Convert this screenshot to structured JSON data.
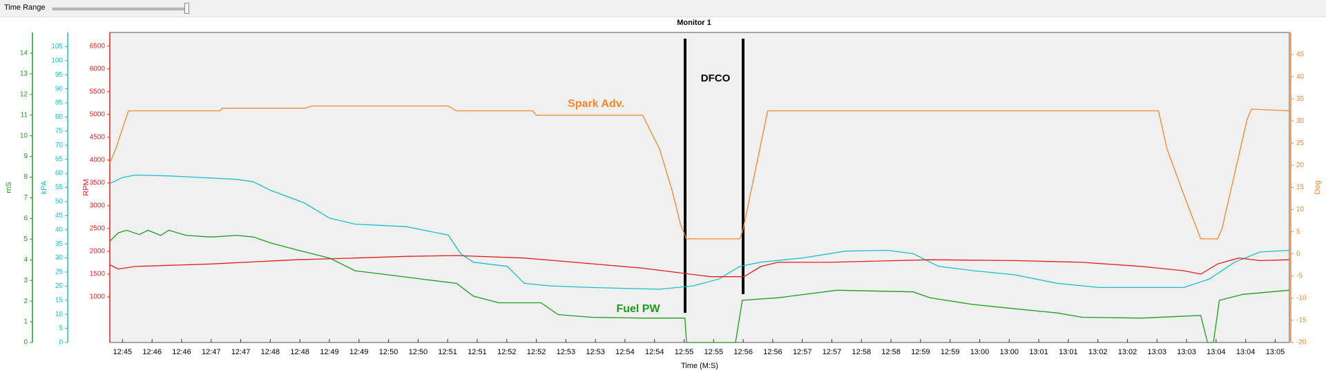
{
  "toolbar": {
    "label": "Time Range"
  },
  "chart_data": {
    "type": "line",
    "title": "Monitor 1",
    "x_label": "Time (M:S)",
    "xlim": [
      -0.43,
      39.48
    ],
    "xticks": [
      {
        "value": 0,
        "label": "12:45"
      },
      {
        "value": 1,
        "label": "12:46"
      },
      {
        "value": 2,
        "label": "12:46"
      },
      {
        "value": 3,
        "label": "12:47"
      },
      {
        "value": 4,
        "label": "12:47"
      },
      {
        "value": 5,
        "label": "12:48"
      },
      {
        "value": 6,
        "label": "12:48"
      },
      {
        "value": 7,
        "label": "12:49"
      },
      {
        "value": 8,
        "label": "12:49"
      },
      {
        "value": 9,
        "label": "12:50"
      },
      {
        "value": 10,
        "label": "12:50"
      },
      {
        "value": 11,
        "label": "12:51"
      },
      {
        "value": 12,
        "label": "12:51"
      },
      {
        "value": 13,
        "label": "12:52"
      },
      {
        "value": 14,
        "label": "12:52"
      },
      {
        "value": 15,
        "label": "12:53"
      },
      {
        "value": 16,
        "label": "12:53"
      },
      {
        "value": 17,
        "label": "12:54"
      },
      {
        "value": 18,
        "label": "12:54"
      },
      {
        "value": 19,
        "label": "12:55"
      },
      {
        "value": 20,
        "label": "12:55"
      },
      {
        "value": 21,
        "label": "12:56"
      },
      {
        "value": 22,
        "label": "12:56"
      },
      {
        "value": 23,
        "label": "12:57"
      },
      {
        "value": 24,
        "label": "12:57"
      },
      {
        "value": 25,
        "label": "12:58"
      },
      {
        "value": 26,
        "label": "12:58"
      },
      {
        "value": 27,
        "label": "12:59"
      },
      {
        "value": 28,
        "label": "12:59"
      },
      {
        "value": 29,
        "label": "13:00"
      },
      {
        "value": 30,
        "label": "13:00"
      },
      {
        "value": 31,
        "label": "13:01"
      },
      {
        "value": 32,
        "label": "13:01"
      },
      {
        "value": 33,
        "label": "13:02"
      },
      {
        "value": 34,
        "label": "13:02"
      },
      {
        "value": 35,
        "label": "13:03"
      },
      {
        "value": 36,
        "label": "13:03"
      },
      {
        "value": 37,
        "label": "13:04"
      },
      {
        "value": 38,
        "label": "13:04"
      },
      {
        "value": 39,
        "label": "13:05"
      }
    ],
    "y_axes": [
      {
        "label": "mS",
        "color": "#1e9a1e",
        "side": "left",
        "lim": [
          0,
          15
        ],
        "ticks": [
          0,
          1,
          2,
          3,
          4,
          5,
          6,
          7,
          8,
          9,
          10,
          11,
          12,
          13,
          14
        ]
      },
      {
        "label": "kPA",
        "color": "#17bfcc",
        "side": "left",
        "lim": [
          0,
          110
        ],
        "ticks": [
          0,
          5,
          10,
          15,
          20,
          25,
          30,
          35,
          40,
          45,
          50,
          55,
          60,
          65,
          70,
          75,
          80,
          85,
          90,
          95,
          100,
          105
        ]
      },
      {
        "label": "RPM",
        "color": "#e31a1c",
        "side": "left",
        "lim": [
          0,
          6800
        ],
        "ticks": [
          1000,
          1500,
          2000,
          2500,
          3000,
          3500,
          4000,
          4500,
          5000,
          5500,
          6000,
          6500
        ]
      },
      {
        "label": "Deg",
        "color": "#f4862a",
        "side": "right",
        "lim": [
          -20,
          50
        ],
        "ticks": [
          -20,
          -15,
          -10,
          -5,
          0,
          5,
          10,
          15,
          20,
          25,
          30,
          35,
          40,
          45
        ]
      }
    ],
    "series": [
      {
        "name": "Spark Adv.",
        "color": "#f4862a",
        "axis": 3,
        "x": [
          -0.43,
          -0.23,
          -0.06,
          0.2,
          3.29,
          3.4,
          6.15,
          6.44,
          11.02,
          11.3,
          13.88,
          14.0,
          17.6,
          17.74,
          18.17,
          18.6,
          18.88,
          19.08,
          20.89,
          21.0,
          21.83,
          35.05,
          35.34,
          35.91,
          36.48,
          37.05,
          37.2,
          38.05,
          38.2,
          39.48
        ],
        "values": [
          20.5,
          23.7,
          27.1,
          32.3,
          32.3,
          32.9,
          32.9,
          33.4,
          33.4,
          32.3,
          32.3,
          31.3,
          31.3,
          29.4,
          23.7,
          14.2,
          6.6,
          3.4,
          3.4,
          5.7,
          32.3,
          32.3,
          23.7,
          13.3,
          3.4,
          3.4,
          5.7,
          30.4,
          32.7,
          32.3
        ]
      },
      {
        "name": "kPA",
        "color": "#17bfcc",
        "axis": 1,
        "x": [
          -0.43,
          0,
          0.43,
          1.57,
          3.86,
          4.43,
          5.01,
          6.15,
          7.01,
          7.87,
          9.59,
          11.02,
          11.44,
          11.87,
          13.02,
          13.59,
          14.45,
          15.88,
          18.17,
          19.31,
          20.17,
          20.89,
          21.6,
          23.03,
          24.46,
          25.89,
          26.75,
          27.61,
          28.76,
          30.19,
          31.62,
          33.05,
          35.91,
          36.77,
          37.63,
          38.48,
          39.48
        ],
        "values": [
          56.4,
          58.5,
          59.4,
          59.1,
          57.9,
          57,
          54,
          49.5,
          44.1,
          42,
          41.1,
          38.1,
          31.5,
          28.5,
          27,
          21,
          20.1,
          19.5,
          18.9,
          20.1,
          22.5,
          27,
          28.5,
          30,
          32.4,
          32.7,
          31.5,
          27,
          25.5,
          24,
          21,
          19.5,
          19.5,
          22.5,
          28.5,
          32.1,
          32.7
        ]
      },
      {
        "name": "RPM",
        "color": "#e31a1c",
        "axis": 2,
        "x": [
          -0.43,
          -0.14,
          0.43,
          3.0,
          5.87,
          7.87,
          9.59,
          11.3,
          13.59,
          15.31,
          17.6,
          18.74,
          19.89,
          21.03,
          21.6,
          22.17,
          23.89,
          27.32,
          30.19,
          32.47,
          34.48,
          35.91,
          36.48,
          37.05,
          37.77,
          38.48,
          39.48
        ],
        "values": [
          1704,
          1611,
          1667,
          1722,
          1815,
          1852,
          1889,
          1907,
          1852,
          1759,
          1630,
          1537,
          1444,
          1444,
          1667,
          1759,
          1759,
          1815,
          1796,
          1759,
          1667,
          1574,
          1500,
          1722,
          1852,
          1796,
          1815
        ]
      },
      {
        "name": "Fuel PW",
        "color": "#1e9a1e",
        "axis": 0,
        "x": [
          -0.43,
          -0.14,
          0.14,
          0.57,
          0.86,
          1.29,
          1.57,
          2.15,
          3.0,
          3.86,
          4.43,
          5.01,
          5.87,
          7.01,
          7.87,
          9.01,
          10.16,
          11.3,
          11.87,
          12.73,
          14.16,
          14.74,
          15.88,
          17.6,
          19.03,
          19.08,
          20.74,
          20.97,
          22.17,
          24.18,
          26.75,
          27.32,
          28.76,
          30.19,
          31.62,
          32.47,
          34.48,
          36.48,
          36.71,
          36.91,
          37.11,
          37.91,
          39.48
        ],
        "values": [
          4.9,
          5.31,
          5.43,
          5.22,
          5.43,
          5.18,
          5.43,
          5.18,
          5.1,
          5.18,
          5.1,
          4.82,
          4.49,
          4.08,
          3.47,
          3.27,
          3.06,
          2.86,
          2.24,
          1.92,
          1.92,
          1.35,
          1.22,
          1.18,
          1.18,
          0,
          0,
          2.04,
          2.16,
          2.53,
          2.45,
          2.16,
          1.84,
          1.63,
          1.43,
          1.22,
          1.18,
          1.31,
          0,
          0,
          2.04,
          2.33,
          2.53
        ]
      }
    ],
    "annotations": [
      "Spark Adv.",
      "DFCO",
      "Fuel PW"
    ]
  }
}
